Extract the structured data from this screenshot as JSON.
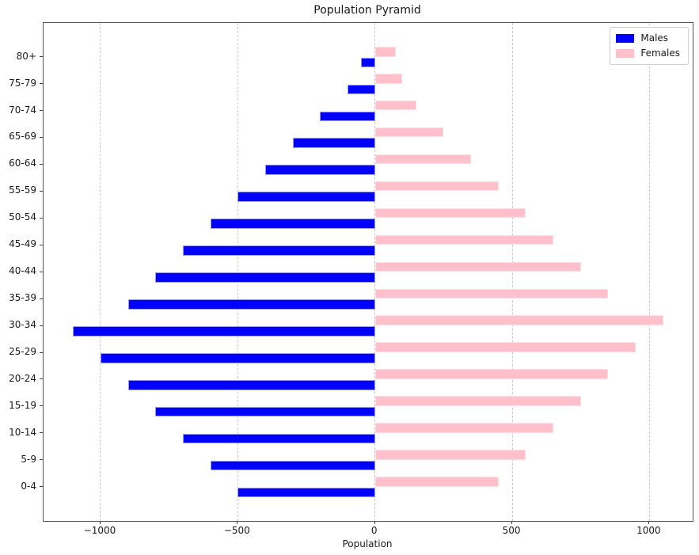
{
  "chart_data": {
    "type": "bar",
    "orientation": "horizontal",
    "title": "Population Pyramid",
    "xlabel": "Population",
    "ylabel": "",
    "categories": [
      "0-4",
      "5-9",
      "10-14",
      "15-19",
      "20-24",
      "25-29",
      "30-34",
      "35-39",
      "40-44",
      "45-49",
      "50-54",
      "55-59",
      "60-64",
      "65-69",
      "70-74",
      "75-79",
      "80+"
    ],
    "series": [
      {
        "name": "Males",
        "color": "#0000ff",
        "values": [
          -500,
          -600,
          -700,
          -800,
          -900,
          -1000,
          -1100,
          -900,
          -800,
          -700,
          -600,
          -500,
          -400,
          -300,
          -200,
          -100,
          -50
        ]
      },
      {
        "name": "Females",
        "color": "#ffc0cb",
        "values": [
          450,
          550,
          650,
          750,
          850,
          950,
          1050,
          850,
          750,
          650,
          550,
          450,
          350,
          250,
          150,
          100,
          75
        ]
      }
    ],
    "x_ticks": [
      {
        "value": -1000,
        "label": "−1000"
      },
      {
        "value": -500,
        "label": "−500"
      },
      {
        "value": 0,
        "label": "0"
      },
      {
        "value": 500,
        "label": "500"
      },
      {
        "value": 1000,
        "label": "1000"
      }
    ],
    "xlim": [
      -1207.5,
      1157.5
    ],
    "ylim": [
      -1.26,
      17.27
    ],
    "bar_height_units": 0.4,
    "grid": {
      "axis": "x",
      "line_style": "dashed",
      "color": "#c9c9c9",
      "behind_bars": true
    },
    "legend": {
      "position": "upper right",
      "entries": [
        "Males",
        "Females"
      ]
    }
  }
}
